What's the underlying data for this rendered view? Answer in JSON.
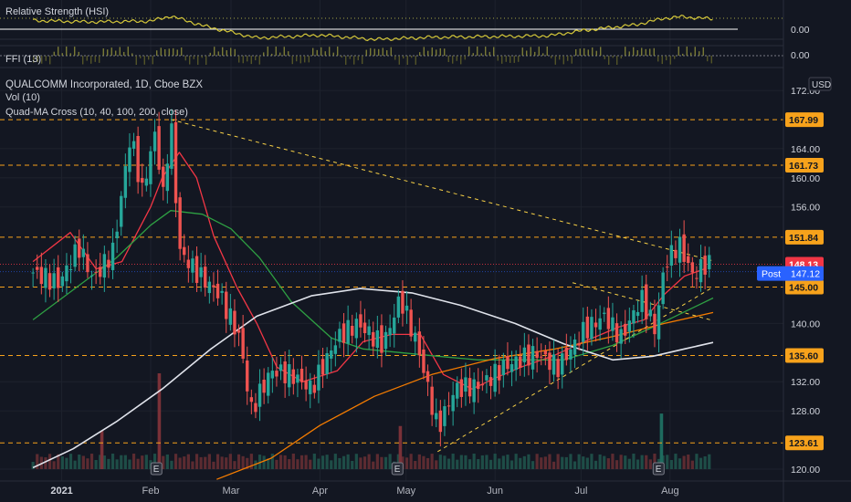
{
  "chart_data": {
    "type": "candlestick",
    "symbol_title": "QUALCOMM Incorporated, 1D, Cboe BZX",
    "indicators": {
      "volume": "Vol (10)",
      "ma_cross": "Quad-MA Cross (10, 40, 100, 200, close)",
      "rs": "Relative Strength (HSI)",
      "fi": "FFI (13)"
    },
    "rs_value": "0.00",
    "fi_value": "0.00",
    "currency": "USD",
    "x_labels": [
      {
        "text": "2021",
        "date": "2021-01-01",
        "bold": true
      },
      {
        "text": "Feb",
        "date": "2021-02-01"
      },
      {
        "text": "Mar",
        "date": "2021-03-01"
      },
      {
        "text": "Apr",
        "date": "2021-04-01"
      },
      {
        "text": "May",
        "date": "2021-05-01"
      },
      {
        "text": "Jun",
        "date": "2021-06-01"
      },
      {
        "text": "Jul",
        "date": "2021-07-01"
      },
      {
        "text": "Aug",
        "date": "2021-08-01"
      }
    ],
    "y_ticks": [
      {
        "text": "172.00",
        "value": 172
      },
      {
        "text": "164.00",
        "value": 164
      },
      {
        "text": "160.00",
        "value": 160
      },
      {
        "text": "156.00",
        "value": 156
      },
      {
        "text": "140.00",
        "value": 140
      },
      {
        "text": "132.00",
        "value": 132
      },
      {
        "text": "128.00",
        "value": 128
      },
      {
        "text": "120.00",
        "value": 120
      }
    ],
    "ylim": [
      119,
      173
    ],
    "horizontal_levels": [
      {
        "label": "167.99",
        "value": 167.99,
        "color": "#f7a21b"
      },
      {
        "label": "161.73",
        "value": 161.73,
        "color": "#f7a21b"
      },
      {
        "label": "151.84",
        "value": 151.84,
        "color": "#f7a21b"
      },
      {
        "label": "145.00",
        "value": 145.0,
        "color": "#f7a21b"
      },
      {
        "label": "135.60",
        "value": 135.6,
        "color": "#f7a21b"
      },
      {
        "label": "123.61",
        "value": 123.61,
        "color": "#f7a21b"
      }
    ],
    "last_price": {
      "label": "148.13",
      "value": 148.13,
      "color": "#f23645"
    },
    "post_market": {
      "tag": "Post",
      "label": "147.12",
      "value": 147.12,
      "color": "#2962ff"
    },
    "trendlines": [
      {
        "from": [
          "2021-02-08",
          168
        ],
        "to": [
          "2021-08-16",
          148.6
        ],
        "color": "#f7d046"
      },
      {
        "from": [
          "2021-05-12",
          122.4
        ],
        "to": [
          "2021-08-16",
          145.0
        ],
        "color": "#f7d046"
      },
      {
        "from": [
          "2021-06-28",
          145.6
        ],
        "to": [
          "2021-08-16",
          140.4
        ],
        "color": "#f7d046"
      }
    ],
    "moving_averages": [
      {
        "period": 10,
        "color": "#f23645",
        "points": [
          [
            "2020-12-22",
            148.5
          ],
          [
            "2021-01-04",
            152.5
          ],
          [
            "2021-01-13",
            147.5
          ],
          [
            "2021-01-22",
            148.5
          ],
          [
            "2021-02-01",
            156
          ],
          [
            "2021-02-05",
            160
          ],
          [
            "2021-02-11",
            163.5
          ],
          [
            "2021-02-17",
            160
          ],
          [
            "2021-02-23",
            152
          ],
          [
            "2021-03-03",
            145
          ],
          [
            "2021-03-10",
            140
          ],
          [
            "2021-03-17",
            134
          ],
          [
            "2021-03-26",
            132
          ],
          [
            "2021-04-07",
            133.5
          ],
          [
            "2021-04-16",
            137.5
          ],
          [
            "2021-04-26",
            138.5
          ],
          [
            "2021-05-06",
            138.5
          ],
          [
            "2021-05-14",
            133
          ],
          [
            "2021-05-24",
            131
          ],
          [
            "2021-06-01",
            132.5
          ],
          [
            "2021-06-10",
            134
          ],
          [
            "2021-06-21",
            135.5
          ],
          [
            "2021-07-02",
            137.5
          ],
          [
            "2021-07-14",
            139.5
          ],
          [
            "2021-07-23",
            140.5
          ],
          [
            "2021-07-30",
            144
          ],
          [
            "2021-08-06",
            146.5
          ],
          [
            "2021-08-13",
            147.5
          ]
        ]
      },
      {
        "period": 40,
        "color": "#2ea043",
        "points": [
          [
            "2020-12-22",
            140.5
          ],
          [
            "2021-01-08",
            145.5
          ],
          [
            "2021-01-20",
            149
          ],
          [
            "2021-02-01",
            153.5
          ],
          [
            "2021-02-08",
            155.5
          ],
          [
            "2021-02-19",
            155
          ],
          [
            "2021-03-01",
            153
          ],
          [
            "2021-03-11",
            149
          ],
          [
            "2021-03-22",
            143
          ],
          [
            "2021-04-05",
            138
          ],
          [
            "2021-04-16",
            136.5
          ],
          [
            "2021-04-29",
            136
          ],
          [
            "2021-05-12",
            135.5
          ],
          [
            "2021-05-26",
            135
          ],
          [
            "2021-06-10",
            135
          ],
          [
            "2021-06-25",
            135
          ],
          [
            "2021-07-12",
            137
          ],
          [
            "2021-07-26",
            139.5
          ],
          [
            "2021-08-16",
            143.5
          ]
        ]
      },
      {
        "period": 100,
        "color": "#f57c00",
        "points": [
          [
            "2021-02-24",
            118.6
          ],
          [
            "2021-03-15",
            121.5
          ],
          [
            "2021-04-01",
            126
          ],
          [
            "2021-04-20",
            130
          ],
          [
            "2021-05-10",
            133
          ],
          [
            "2021-06-01",
            135.2
          ],
          [
            "2021-06-22",
            136.5
          ],
          [
            "2021-07-12",
            138.2
          ],
          [
            "2021-07-30",
            140
          ],
          [
            "2021-08-16",
            141.5
          ]
        ]
      },
      {
        "period": 200,
        "color": "#e0e3eb",
        "points": [
          [
            "2020-12-22",
            120.2
          ],
          [
            "2021-01-05",
            122.8
          ],
          [
            "2021-01-20",
            126.5
          ],
          [
            "2021-02-05",
            131
          ],
          [
            "2021-02-22",
            136.5
          ],
          [
            "2021-03-10",
            141
          ],
          [
            "2021-03-29",
            143.8
          ],
          [
            "2021-04-15",
            144.8
          ],
          [
            "2021-05-03",
            144.2
          ],
          [
            "2021-05-20",
            142.5
          ],
          [
            "2021-06-08",
            140
          ],
          [
            "2021-06-25",
            137.2
          ],
          [
            "2021-07-12",
            135
          ],
          [
            "2021-07-26",
            135.5
          ],
          [
            "2021-08-06",
            136.5
          ],
          [
            "2021-08-16",
            137.4
          ]
        ]
      }
    ],
    "ohlc_path": [
      [
        "2020-12-22",
        147
      ],
      [
        "2020-12-31",
        145.5
      ],
      [
        "2021-01-07",
        150.5
      ],
      [
        "2021-01-12",
        146
      ],
      [
        "2021-01-19",
        150
      ],
      [
        "2021-01-25",
        166
      ],
      [
        "2021-01-29",
        158
      ],
      [
        "2021-02-03",
        167
      ],
      [
        "2021-02-05",
        156
      ],
      [
        "2021-02-08",
        168
      ],
      [
        "2021-02-11",
        150
      ],
      [
        "2021-02-17",
        147
      ],
      [
        "2021-02-25",
        144
      ],
      [
        "2021-03-04",
        138
      ],
      [
        "2021-03-08",
        128
      ],
      [
        "2021-03-15",
        133.5
      ],
      [
        "2021-03-22",
        133
      ],
      [
        "2021-03-29",
        131
      ],
      [
        "2021-04-07",
        138
      ],
      [
        "2021-04-14",
        140
      ],
      [
        "2021-04-23",
        137
      ],
      [
        "2021-04-29",
        143.5
      ],
      [
        "2021-05-05",
        137
      ],
      [
        "2021-05-12",
        125.5
      ],
      [
        "2021-05-18",
        131
      ],
      [
        "2021-05-27",
        131.5
      ],
      [
        "2021-06-04",
        134
      ],
      [
        "2021-06-15",
        136
      ],
      [
        "2021-06-23",
        134
      ],
      [
        "2021-07-02",
        139
      ],
      [
        "2021-07-09",
        141
      ],
      [
        "2021-07-15",
        138
      ],
      [
        "2021-07-22",
        143.5
      ],
      [
        "2021-07-27",
        139
      ],
      [
        "2021-07-30",
        148
      ],
      [
        "2021-08-04",
        151
      ],
      [
        "2021-08-09",
        146.5
      ],
      [
        "2021-08-13",
        148.1
      ],
      [
        "2021-08-16",
        148.13
      ]
    ],
    "volume_spikes": [
      {
        "date": "2021-01-15",
        "rel": 0.4
      },
      {
        "date": "2021-02-04",
        "rel": 1.0
      },
      {
        "date": "2021-04-29",
        "rel": 0.45
      },
      {
        "date": "2021-07-29",
        "rel": 0.58
      }
    ],
    "rs_line": [
      [
        "2020-12-22",
        0.6
      ],
      [
        "2021-01-10",
        0.5
      ],
      [
        "2021-02-01",
        0.55
      ],
      [
        "2021-02-08",
        0.9
      ],
      [
        "2021-02-20",
        0.2
      ],
      [
        "2021-03-10",
        -0.6
      ],
      [
        "2021-04-01",
        -0.4
      ],
      [
        "2021-04-20",
        -0.7
      ],
      [
        "2021-05-10",
        -0.55
      ],
      [
        "2021-06-01",
        -0.5
      ],
      [
        "2021-06-20",
        -0.45
      ],
      [
        "2021-07-01",
        -0.1
      ],
      [
        "2021-07-20",
        0.3
      ],
      [
        "2021-07-30",
        0.75
      ],
      [
        "2021-08-05",
        0.85
      ],
      [
        "2021-08-16",
        0.7
      ]
    ],
    "earnings_events": [
      "2021-02-03",
      "2021-04-28",
      "2021-07-28"
    ],
    "earnings_label": "E"
  }
}
